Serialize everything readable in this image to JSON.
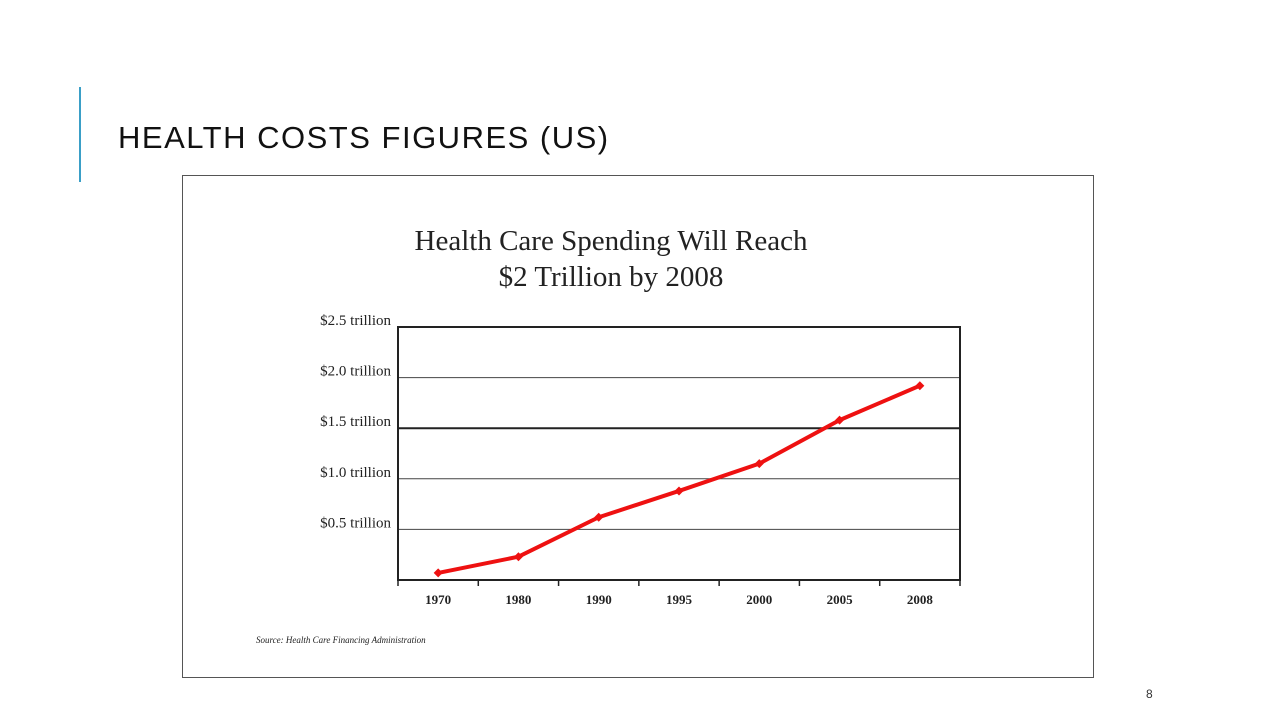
{
  "slide": {
    "title": "HEALTH COSTS FIGURES (US)",
    "page_number": "8",
    "accent_color": "#3a9fc7"
  },
  "chart_data": {
    "type": "line",
    "title_lines": [
      "Health Care Spending Will Reach",
      "$2 Trillion by 2008"
    ],
    "categories": [
      "1970",
      "1980",
      "1990",
      "1995",
      "2000",
      "2005",
      "2008"
    ],
    "series": [
      {
        "values": [
          0.07,
          0.23,
          0.62,
          0.88,
          1.15,
          1.58,
          1.92
        ],
        "color": "#ee1111"
      }
    ],
    "y_ticks": [
      {
        "value": 0.5,
        "label": "$0.5 trillion"
      },
      {
        "value": 1.0,
        "label": "$1.0 trillion"
      },
      {
        "value": 1.5,
        "label": "$1.5 trillion"
      },
      {
        "value": 2.0,
        "label": "$2.0 trillion"
      },
      {
        "value": 2.5,
        "label": "$2.5 trillion"
      }
    ],
    "ylim": [
      0,
      2.5
    ],
    "grid": true,
    "source": "Source: Health Care Financing Administration"
  }
}
